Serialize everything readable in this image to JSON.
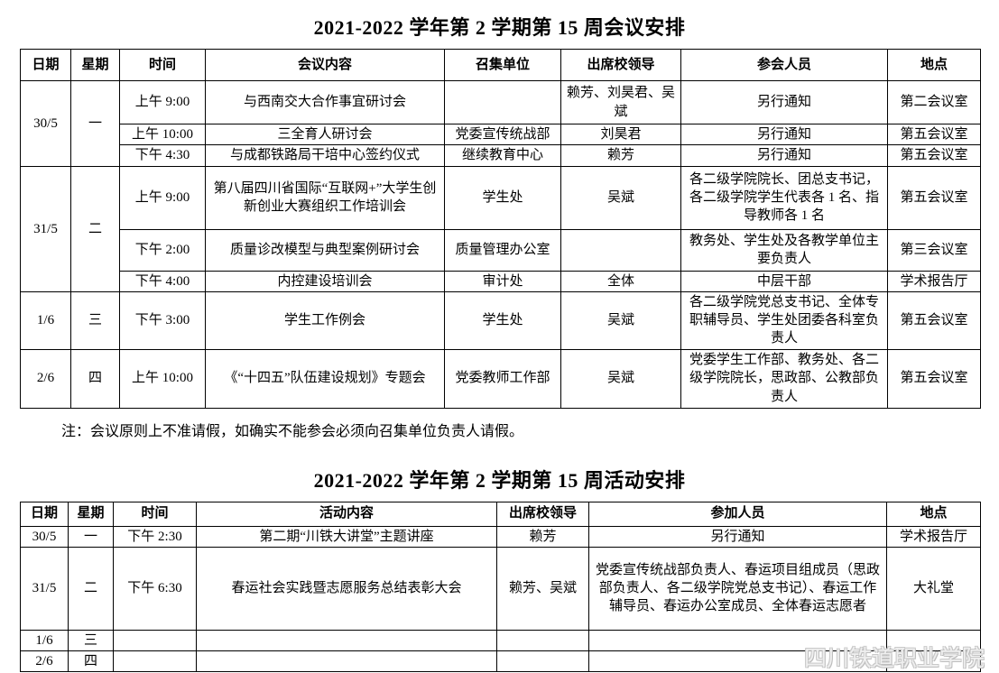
{
  "note": "注：会议原则上不准请假，如确实不能参会必须向召集单位负责人请假。",
  "watermark": "四川铁道职业学院",
  "meeting_table": {
    "title": "2021-2022 学年第 2 学期第 15 周会议安排",
    "headers": [
      "日期",
      "星期",
      "时间",
      "会议内容",
      "召集单位",
      "出席校领导",
      "参会人员",
      "地点"
    ],
    "rows": [
      [
        {
          "text": "30/5",
          "rowspan": 3
        },
        {
          "text": "一",
          "rowspan": 3
        },
        "上午 9:00",
        "与西南交大合作事宜研讨会",
        "",
        "赖芳、刘昊君、吴斌",
        "另行通知",
        "第二会议室"
      ],
      [
        "上午 10:00",
        "三全育人研讨会",
        "党委宣传统战部",
        "刘昊君",
        "另行通知",
        "第五会议室"
      ],
      [
        "下午 4:30",
        "与成都铁路局干培中心签约仪式",
        "继续教育中心",
        "赖芳",
        "另行通知",
        "第五会议室"
      ],
      [
        {
          "text": "31/5",
          "rowspan": 3
        },
        {
          "text": "二",
          "rowspan": 3
        },
        "上午 9:00",
        "第八届四川省国际“互联网+”大学生创新创业大赛组织工作培训会",
        "学生处",
        "吴斌",
        "各二级学院院长、团总支书记，各二级学院学生代表各 1 名、指导教师各 1 名",
        "第五会议室"
      ],
      [
        "下午 2:00",
        "质量诊改模型与典型案例研讨会",
        "质量管理办公室",
        "",
        "教务处、学生处及各教学单位主要负责人",
        "第三会议室"
      ],
      [
        "下午 4:00",
        "内控建设培训会",
        "审计处",
        "全体",
        "中层干部",
        "学术报告厅"
      ],
      [
        "1/6",
        "三",
        "下午 3:00",
        "学生工作例会",
        "学生处",
        "吴斌",
        "各二级学院党总支书记、全体专职辅导员、学生处团委各科室负责人",
        "第五会议室"
      ],
      [
        "2/6",
        "四",
        "上午 10:00",
        "《“十四五”队伍建设规划》专题会",
        "党委教师工作部",
        "吴斌",
        "党委学生工作部、教务处、各二级学院院长，思政部、公教部负责人",
        "第五会议室"
      ]
    ]
  },
  "activity_table": {
    "title": "2021-2022 学年第 2 学期第 15 周活动安排",
    "headers": [
      "日期",
      "星期",
      "时间",
      "活动内容",
      "出席校领导",
      "参加人员",
      "地点"
    ],
    "rows": [
      [
        "30/5",
        "一",
        "下午 2:30",
        "第二期“川铁大讲堂”主题讲座",
        "赖芳",
        "另行通知",
        "学术报告厅"
      ],
      [
        "31/5",
        "二",
        "下午 6:30",
        "春运社会实践暨志愿服务总结表彰大会",
        "赖芳、吴斌",
        "党委宣传统战部负责人、春运项目组成员（思政部负责人、各二级学院党总支书记）、春运工作辅导员、春运办公室成员、全体春运志愿者",
        "大礼堂"
      ],
      [
        "1/6",
        "三",
        "",
        "",
        "",
        "",
        ""
      ],
      [
        "2/6",
        "四",
        "",
        "",
        "",
        "",
        ""
      ]
    ]
  }
}
